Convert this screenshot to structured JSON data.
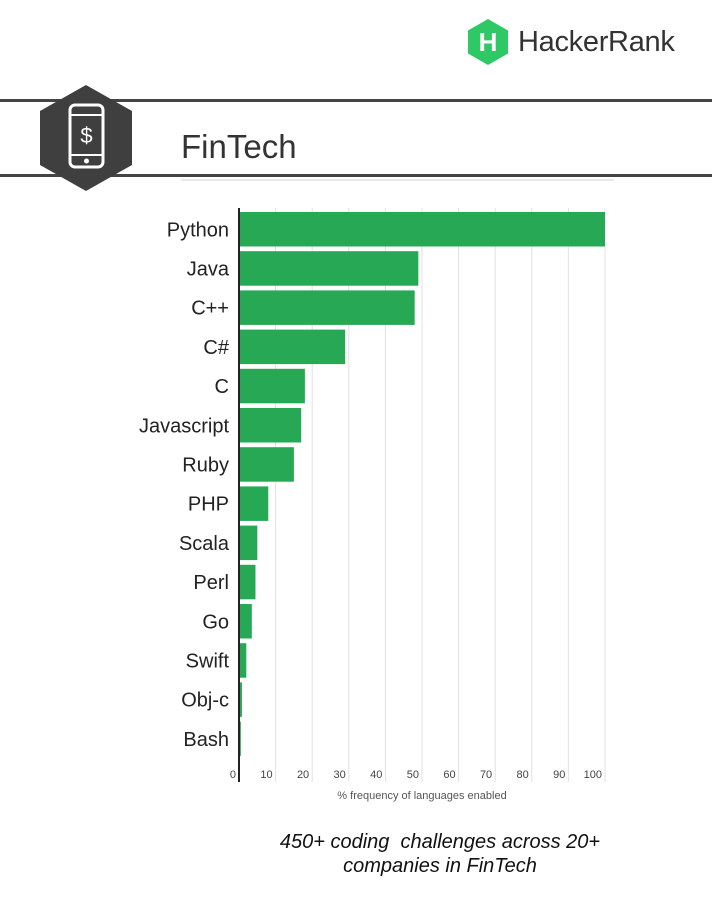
{
  "brand": {
    "name": "HackerRank",
    "logo_letter": "H",
    "logo_color": "#2EC866"
  },
  "header": {
    "title": "FinTech",
    "badge_icon": "mobile-dollar-icon",
    "badge_color": "#3f3f3f"
  },
  "chart_data": {
    "type": "bar",
    "orientation": "horizontal",
    "categories": [
      "Python",
      "Java",
      "C++",
      "C#",
      "C",
      "Javascript",
      "Ruby",
      "PHP",
      "Scala",
      "Perl",
      "Go",
      "Swift",
      "Obj-c",
      "Bash"
    ],
    "values": [
      100,
      49,
      48,
      29,
      18,
      17,
      15,
      8,
      5,
      4.5,
      3.5,
      2,
      0.8,
      0.5
    ],
    "xlabel": "% frequency of languages enabled",
    "xlim": [
      0,
      100
    ],
    "xticks": [
      0,
      10,
      20,
      30,
      40,
      50,
      60,
      70,
      80,
      90,
      100
    ],
    "grid": true,
    "bar_color": "#27a854"
  },
  "caption": {
    "line1": "450+ coding  challenges across 20+",
    "line2": "companies in FinTech"
  }
}
